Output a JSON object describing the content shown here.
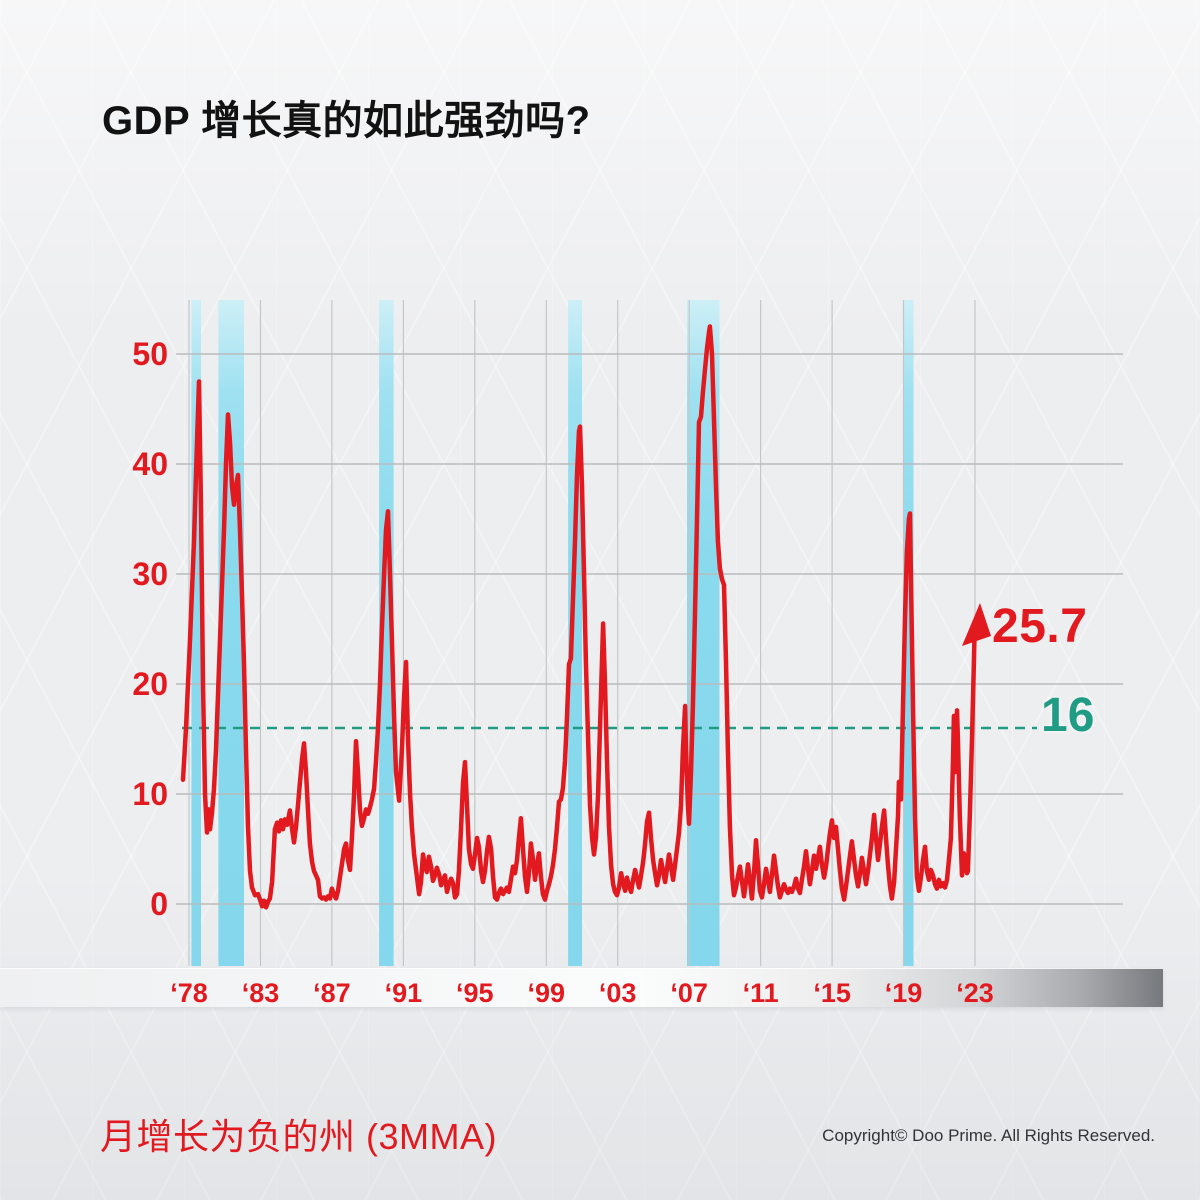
{
  "header": {
    "title": "GDP 增长真的如此强劲吗?"
  },
  "footer": {
    "caption": "月增长为负的州 (3MMA)",
    "copyright": "Copyright© Doo Prime. All Rights Reserved."
  },
  "colors": {
    "line_red": "#e2191f",
    "label_red": "#e2191f",
    "band_blue": "#8adaee",
    "band_blue_light": "#cdeff7",
    "grid_gray": "#b9bbbd",
    "vgrid_gray": "#c5c6c8",
    "reference_green": "#1f9c83",
    "title_black": "#121212",
    "copyright_gray": "#333336"
  },
  "chart_data": {
    "type": "line",
    "title": "GDP 增长真的如此强劲吗?",
    "series_name": "月增长为负的州 (3MMA)",
    "xlabel": "",
    "ylabel": "",
    "ylim": [
      0,
      55
    ],
    "yticks": [
      0,
      10,
      20,
      30,
      40,
      50
    ],
    "xtick_labels": [
      "‘78",
      "‘83",
      "‘87",
      "‘91",
      "‘95",
      "‘99",
      "‘03",
      "‘07",
      "‘11",
      "‘15",
      "‘19",
      "‘23"
    ],
    "xtick_years": [
      1978,
      1983,
      1987,
      1991,
      1995,
      1999,
      2003,
      2007,
      2011,
      2015,
      2019,
      2023
    ],
    "grid": true,
    "legend_position": "none",
    "reference_line": {
      "value": 16,
      "label": "16",
      "style": "dashed"
    },
    "end_annotation": {
      "label": "25.7",
      "value": 25.7,
      "marker": "up-arrow"
    },
    "recession_bands": [
      [
        1978.17,
        1978.84
      ],
      [
        1980.06,
        1981.85
      ],
      [
        1989.64,
        1990.45
      ],
      [
        2000.22,
        2001.0
      ],
      [
        2006.88,
        2008.7
      ],
      [
        2018.97,
        2019.56
      ]
    ],
    "series": [
      [
        1977.58,
        11.3
      ],
      [
        1977.79,
        16
      ],
      [
        1978.07,
        24
      ],
      [
        1978.35,
        33
      ],
      [
        1978.56,
        42
      ],
      [
        1978.7,
        47.5
      ],
      [
        1978.84,
        36
      ],
      [
        1978.98,
        20
      ],
      [
        1979.12,
        10
      ],
      [
        1979.26,
        6.5
      ],
      [
        1979.4,
        8.6
      ],
      [
        1979.47,
        6.8
      ],
      [
        1979.61,
        8.3
      ],
      [
        1979.75,
        10.5
      ],
      [
        1979.89,
        14
      ],
      [
        1980.17,
        24
      ],
      [
        1980.45,
        34
      ],
      [
        1980.59,
        40
      ],
      [
        1980.73,
        44.5
      ],
      [
        1980.87,
        42
      ],
      [
        1981.01,
        38
      ],
      [
        1981.15,
        36.3
      ],
      [
        1981.29,
        38
      ],
      [
        1981.43,
        39
      ],
      [
        1981.57,
        34
      ],
      [
        1981.71,
        28
      ],
      [
        1981.85,
        21.8
      ],
      [
        1981.99,
        14
      ],
      [
        1982.13,
        7
      ],
      [
        1982.27,
        3
      ],
      [
        1982.41,
        1.5
      ],
      [
        1982.62,
        0.8
      ],
      [
        1982.83,
        0.9
      ],
      [
        1982.97,
        0.4
      ],
      [
        1983.09,
        -0.2
      ],
      [
        1983.2,
        0.3
      ],
      [
        1983.31,
        -0.3
      ],
      [
        1983.42,
        0.2
      ],
      [
        1983.53,
        0.5
      ],
      [
        1983.65,
        2
      ],
      [
        1983.81,
        6.8
      ],
      [
        1983.93,
        7.4
      ],
      [
        1984.04,
        6.6
      ],
      [
        1984.15,
        7.6
      ],
      [
        1984.26,
        6.8
      ],
      [
        1984.37,
        7.7
      ],
      [
        1984.49,
        7.2
      ],
      [
        1984.65,
        8.5
      ],
      [
        1984.77,
        6.8
      ],
      [
        1984.88,
        5.6
      ],
      [
        1984.99,
        7
      ],
      [
        1985.1,
        9
      ],
      [
        1985.21,
        11
      ],
      [
        1985.33,
        13.2
      ],
      [
        1985.44,
        14.6
      ],
      [
        1985.55,
        12
      ],
      [
        1985.66,
        8.5
      ],
      [
        1985.77,
        5.5
      ],
      [
        1985.89,
        3.8
      ],
      [
        1986.0,
        3
      ],
      [
        1986.11,
        2.6
      ],
      [
        1986.22,
        2.2
      ],
      [
        1986.33,
        0.7
      ],
      [
        1986.45,
        0.5
      ],
      [
        1986.56,
        0.6
      ],
      [
        1986.67,
        0.4
      ],
      [
        1986.78,
        0.7
      ],
      [
        1986.89,
        0.5
      ],
      [
        1987.0,
        1.4
      ],
      [
        1987.12,
        0.8
      ],
      [
        1987.23,
        0.5
      ],
      [
        1987.34,
        1.2
      ],
      [
        1987.45,
        2.4
      ],
      [
        1987.56,
        3.6
      ],
      [
        1987.68,
        5
      ],
      [
        1987.79,
        5.5
      ],
      [
        1987.9,
        4
      ],
      [
        1988.01,
        3.1
      ],
      [
        1988.12,
        6
      ],
      [
        1988.24,
        10
      ],
      [
        1988.35,
        14.8
      ],
      [
        1988.46,
        12
      ],
      [
        1988.57,
        8.5
      ],
      [
        1988.68,
        7.1
      ],
      [
        1988.8,
        7.8
      ],
      [
        1988.91,
        8.6
      ],
      [
        1989.02,
        8.2
      ],
      [
        1989.13,
        8.8
      ],
      [
        1989.24,
        9.5
      ],
      [
        1989.36,
        10.5
      ],
      [
        1989.47,
        13
      ],
      [
        1989.58,
        16
      ],
      [
        1989.69,
        20
      ],
      [
        1989.8,
        25
      ],
      [
        1989.92,
        30
      ],
      [
        1990.03,
        34
      ],
      [
        1990.14,
        35.7
      ],
      [
        1990.25,
        30
      ],
      [
        1990.36,
        24
      ],
      [
        1990.48,
        17
      ],
      [
        1990.59,
        12
      ],
      [
        1990.76,
        9.4
      ],
      [
        1990.92,
        14
      ],
      [
        1991.03,
        18.5
      ],
      [
        1991.15,
        22
      ],
      [
        1991.26,
        15
      ],
      [
        1991.37,
        10.1
      ],
      [
        1991.48,
        7
      ],
      [
        1991.6,
        4.5
      ],
      [
        1991.76,
        2.5
      ],
      [
        1991.88,
        0.9
      ],
      [
        1991.99,
        2
      ],
      [
        1992.1,
        4.5
      ],
      [
        1992.21,
        3.4
      ],
      [
        1992.32,
        2.9
      ],
      [
        1992.43,
        4.3
      ],
      [
        1992.55,
        3.4
      ],
      [
        1992.66,
        2.1
      ],
      [
        1992.77,
        2.6
      ],
      [
        1992.88,
        3.3
      ],
      [
        1993.0,
        2.7
      ],
      [
        1993.11,
        1.7
      ],
      [
        1993.22,
        2.2
      ],
      [
        1993.33,
        2.6
      ],
      [
        1993.44,
        1.1
      ],
      [
        1993.55,
        1.8
      ],
      [
        1993.67,
        2.3
      ],
      [
        1993.78,
        1.9
      ],
      [
        1993.89,
        0.6
      ],
      [
        1994.0,
        0.9
      ],
      [
        1994.11,
        3
      ],
      [
        1994.23,
        7
      ],
      [
        1994.34,
        11
      ],
      [
        1994.45,
        12.9
      ],
      [
        1994.56,
        9
      ],
      [
        1994.67,
        5
      ],
      [
        1994.79,
        3.6
      ],
      [
        1994.9,
        3.2
      ],
      [
        1995.01,
        4.5
      ],
      [
        1995.12,
        6
      ],
      [
        1995.23,
        5.2
      ],
      [
        1995.35,
        3
      ],
      [
        1995.46,
        2
      ],
      [
        1995.57,
        3
      ],
      [
        1995.68,
        4.8
      ],
      [
        1995.79,
        6.1
      ],
      [
        1995.91,
        5
      ],
      [
        1996.02,
        2.5
      ],
      [
        1996.13,
        0.6
      ],
      [
        1996.24,
        0.4
      ],
      [
        1996.35,
        1
      ],
      [
        1996.46,
        1.4
      ],
      [
        1996.58,
        0.9
      ],
      [
        1996.69,
        1.2
      ],
      [
        1996.8,
        1.5
      ],
      [
        1996.91,
        1.1
      ],
      [
        1997.02,
        2.2
      ],
      [
        1997.14,
        3.4
      ],
      [
        1997.25,
        2.8
      ],
      [
        1997.36,
        4
      ],
      [
        1997.47,
        6
      ],
      [
        1997.58,
        7.8
      ],
      [
        1997.7,
        5
      ],
      [
        1997.81,
        2.5
      ],
      [
        1997.92,
        1.1
      ],
      [
        1998.03,
        2.8
      ],
      [
        1998.14,
        5.5
      ],
      [
        1998.26,
        4
      ],
      [
        1998.37,
        2.2
      ],
      [
        1998.48,
        3.5
      ],
      [
        1998.59,
        4.6
      ],
      [
        1998.7,
        2.5
      ],
      [
        1998.81,
        0.9
      ],
      [
        1998.93,
        0.4
      ],
      [
        1999.04,
        1.2
      ],
      [
        1999.15,
        1.8
      ],
      [
        1999.26,
        2.5
      ],
      [
        1999.37,
        3.5
      ],
      [
        1999.49,
        5
      ],
      [
        1999.6,
        7
      ],
      [
        1999.71,
        9.3
      ],
      [
        1999.82,
        9.5
      ],
      [
        1999.93,
        10.5
      ],
      [
        2000.05,
        13
      ],
      [
        2000.16,
        17
      ],
      [
        2000.27,
        21.8
      ],
      [
        2000.38,
        22.3
      ],
      [
        2000.5,
        28
      ],
      [
        2000.61,
        33
      ],
      [
        2000.72,
        39
      ],
      [
        2000.83,
        43
      ],
      [
        2000.89,
        43.4
      ],
      [
        2001.0,
        38
      ],
      [
        2001.11,
        30
      ],
      [
        2001.22,
        22
      ],
      [
        2001.34,
        15
      ],
      [
        2001.45,
        9
      ],
      [
        2001.56,
        6.1
      ],
      [
        2001.67,
        4.5
      ],
      [
        2001.78,
        6
      ],
      [
        2001.9,
        10
      ],
      [
        2002.01,
        16
      ],
      [
        2002.18,
        25.5
      ],
      [
        2002.29,
        20
      ],
      [
        2002.4,
        13
      ],
      [
        2002.51,
        7
      ],
      [
        2002.63,
        3.5
      ],
      [
        2002.74,
        1.8
      ],
      [
        2002.85,
        1.1
      ],
      [
        2002.96,
        0.8
      ],
      [
        2003.07,
        1.5
      ],
      [
        2003.19,
        2.8
      ],
      [
        2003.3,
        1.9
      ],
      [
        2003.41,
        1.2
      ],
      [
        2003.52,
        2.4
      ],
      [
        2003.63,
        1.6
      ],
      [
        2003.75,
        1.1
      ],
      [
        2003.86,
        2.2
      ],
      [
        2003.97,
        3.1
      ],
      [
        2004.08,
        2.3
      ],
      [
        2004.19,
        1.5
      ],
      [
        2004.3,
        2.5
      ],
      [
        2004.42,
        3.8
      ],
      [
        2004.53,
        5.5
      ],
      [
        2004.64,
        7.5
      ],
      [
        2004.75,
        8.3
      ],
      [
        2004.86,
        6
      ],
      [
        2004.98,
        4
      ],
      [
        2005.09,
        2.8
      ],
      [
        2005.2,
        1.7
      ],
      [
        2005.31,
        2.6
      ],
      [
        2005.42,
        4
      ],
      [
        2005.54,
        3
      ],
      [
        2005.65,
        2
      ],
      [
        2005.76,
        3.2
      ],
      [
        2005.87,
        4.5
      ],
      [
        2005.98,
        3.4
      ],
      [
        2006.1,
        2.2
      ],
      [
        2006.21,
        3.6
      ],
      [
        2006.32,
        5
      ],
      [
        2006.43,
        6.5
      ],
      [
        2006.54,
        9
      ],
      [
        2006.65,
        14
      ],
      [
        2006.77,
        18
      ],
      [
        2006.82,
        14
      ],
      [
        2006.93,
        9
      ],
      [
        2006.99,
        7.3
      ],
      [
        2007.1,
        12
      ],
      [
        2007.21,
        18
      ],
      [
        2007.32,
        26
      ],
      [
        2007.44,
        35
      ],
      [
        2007.55,
        43.8
      ],
      [
        2007.66,
        44.3
      ],
      [
        2007.77,
        46.5
      ],
      [
        2007.88,
        48.5
      ],
      [
        2008.0,
        50.5
      ],
      [
        2008.11,
        52
      ],
      [
        2008.16,
        52.5
      ],
      [
        2008.28,
        50
      ],
      [
        2008.39,
        44
      ],
      [
        2008.5,
        38
      ],
      [
        2008.61,
        33
      ],
      [
        2008.72,
        30.5
      ],
      [
        2008.84,
        29.5
      ],
      [
        2008.95,
        29
      ],
      [
        2009.06,
        22
      ],
      [
        2009.17,
        14
      ],
      [
        2009.28,
        7
      ],
      [
        2009.4,
        2.5
      ],
      [
        2009.51,
        0.8
      ],
      [
        2009.62,
        1.5
      ],
      [
        2009.73,
        2.5
      ],
      [
        2009.84,
        3.4
      ],
      [
        2009.96,
        2
      ],
      [
        2010.07,
        0.7
      ],
      [
        2010.18,
        2
      ],
      [
        2010.29,
        3.6
      ],
      [
        2010.4,
        2.2
      ],
      [
        2010.51,
        0.5
      ],
      [
        2010.63,
        2.8
      ],
      [
        2010.74,
        5.8
      ],
      [
        2010.85,
        3.5
      ],
      [
        2010.96,
        1.2
      ],
      [
        2011.07,
        0.6
      ],
      [
        2011.19,
        1.8
      ],
      [
        2011.3,
        3.2
      ],
      [
        2011.41,
        2.2
      ],
      [
        2011.52,
        1.1
      ],
      [
        2011.63,
        2.6
      ],
      [
        2011.75,
        4.4
      ],
      [
        2011.86,
        3
      ],
      [
        2011.97,
        1.6
      ],
      [
        2012.08,
        0.6
      ],
      [
        2012.19,
        1.2
      ],
      [
        2012.31,
        1.8
      ],
      [
        2012.42,
        1.3
      ],
      [
        2012.53,
        1
      ],
      [
        2012.64,
        1.4
      ],
      [
        2012.75,
        1.1
      ],
      [
        2012.87,
        1.6
      ],
      [
        2012.98,
        2.3
      ],
      [
        2013.09,
        1.4
      ],
      [
        2013.2,
        1
      ],
      [
        2013.31,
        2.2
      ],
      [
        2013.43,
        3.4
      ],
      [
        2013.54,
        4.8
      ],
      [
        2013.65,
        3.2
      ],
      [
        2013.76,
        1.8
      ],
      [
        2013.87,
        3
      ],
      [
        2013.99,
        4.4
      ],
      [
        2014.1,
        3.2
      ],
      [
        2014.21,
        4.2
      ],
      [
        2014.32,
        5.2
      ],
      [
        2014.43,
        3.6
      ],
      [
        2014.55,
        2.4
      ],
      [
        2014.66,
        3.4
      ],
      [
        2014.77,
        5
      ],
      [
        2014.88,
        6.4
      ],
      [
        2014.99,
        7.6
      ],
      [
        2015.11,
        6
      ],
      [
        2015.22,
        7
      ],
      [
        2015.33,
        5
      ],
      [
        2015.44,
        3
      ],
      [
        2015.55,
        1.4
      ],
      [
        2015.67,
        0.4
      ],
      [
        2015.78,
        1.6
      ],
      [
        2015.89,
        3
      ],
      [
        2016.0,
        4.4
      ],
      [
        2016.11,
        5.7
      ],
      [
        2016.23,
        4
      ],
      [
        2016.34,
        2.6
      ],
      [
        2016.45,
        1.6
      ],
      [
        2016.56,
        2.8
      ],
      [
        2016.67,
        4.2
      ],
      [
        2016.79,
        3
      ],
      [
        2016.9,
        1.8
      ],
      [
        2017.01,
        3
      ],
      [
        2017.12,
        4.5
      ],
      [
        2017.23,
        6
      ],
      [
        2017.35,
        8.1
      ],
      [
        2017.46,
        6
      ],
      [
        2017.57,
        4
      ],
      [
        2017.68,
        5.5
      ],
      [
        2017.79,
        7
      ],
      [
        2017.91,
        8.5
      ],
      [
        2018.02,
        6
      ],
      [
        2018.13,
        3.5
      ],
      [
        2018.24,
        1.6
      ],
      [
        2018.35,
        0.5
      ],
      [
        2018.47,
        2
      ],
      [
        2018.58,
        5
      ],
      [
        2018.69,
        8
      ],
      [
        2018.74,
        11.1
      ],
      [
        2018.86,
        9.5
      ],
      [
        2018.97,
        18
      ],
      [
        2019.08,
        26
      ],
      [
        2019.19,
        32
      ],
      [
        2019.3,
        35
      ],
      [
        2019.36,
        35.5
      ],
      [
        2019.41,
        30
      ],
      [
        2019.53,
        18
      ],
      [
        2019.64,
        8
      ],
      [
        2019.75,
        2.5
      ],
      [
        2019.86,
        1.2
      ],
      [
        2019.97,
        2.4
      ],
      [
        2020.09,
        4
      ],
      [
        2020.2,
        5.2
      ],
      [
        2020.31,
        3
      ],
      [
        2020.42,
        2.2
      ],
      [
        2020.53,
        3.1
      ],
      [
        2020.65,
        2.6
      ],
      [
        2020.76,
        1.8
      ],
      [
        2020.87,
        1.4
      ],
      [
        2020.98,
        2.2
      ],
      [
        2021.09,
        1.6
      ],
      [
        2021.21,
        1.9
      ],
      [
        2021.32,
        1.5
      ],
      [
        2021.43,
        2.2
      ],
      [
        2021.54,
        4
      ],
      [
        2021.65,
        6
      ],
      [
        2021.77,
        13
      ],
      [
        2021.82,
        17.1
      ],
      [
        2021.88,
        14
      ],
      [
        2021.93,
        12
      ],
      [
        2021.99,
        17.6
      ],
      [
        2022.04,
        15
      ],
      [
        2022.15,
        8
      ],
      [
        2022.27,
        2.6
      ],
      [
        2022.32,
        3.5
      ],
      [
        2022.38,
        4.6
      ],
      [
        2022.49,
        3.4
      ],
      [
        2022.55,
        2.8
      ],
      [
        2022.6,
        3
      ],
      [
        2022.71,
        8
      ],
      [
        2022.83,
        15
      ],
      [
        2022.94,
        22
      ],
      [
        2022.99,
        25.7
      ]
    ]
  }
}
